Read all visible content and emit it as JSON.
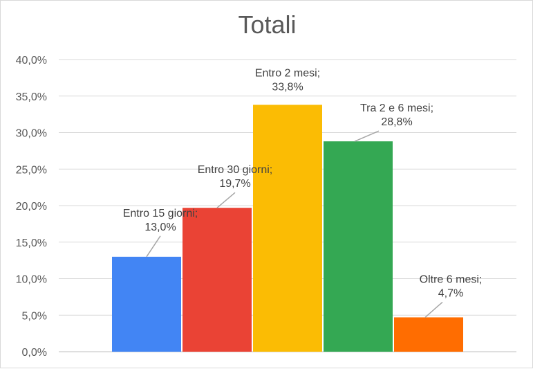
{
  "chart_data": {
    "type": "bar",
    "title": "Totali",
    "xlabel": "",
    "ylabel": "",
    "categories": [
      "Entro 15 giorni",
      "Entro 30 giorni",
      "Entro 2 mesi",
      "Tra 2 e 6 mesi",
      "Oltre 6 mesi"
    ],
    "values": [
      13.0,
      19.7,
      33.8,
      28.8,
      4.7
    ],
    "data_labels": [
      "13,0%",
      "19,7%",
      "33,8%",
      "28,8%",
      "4,7%"
    ],
    "colors": [
      "#4285f4",
      "#ea4335",
      "#fbbc04",
      "#34a853",
      "#ff6d01"
    ],
    "ylim": [
      0,
      40
    ],
    "yticks": [
      "0,0%",
      "5,0%",
      "10,0%",
      "15,0%",
      "20,0%",
      "25,0%",
      "30,0%",
      "35,0%",
      "40,0%"
    ],
    "grid": true,
    "legend": "none"
  }
}
